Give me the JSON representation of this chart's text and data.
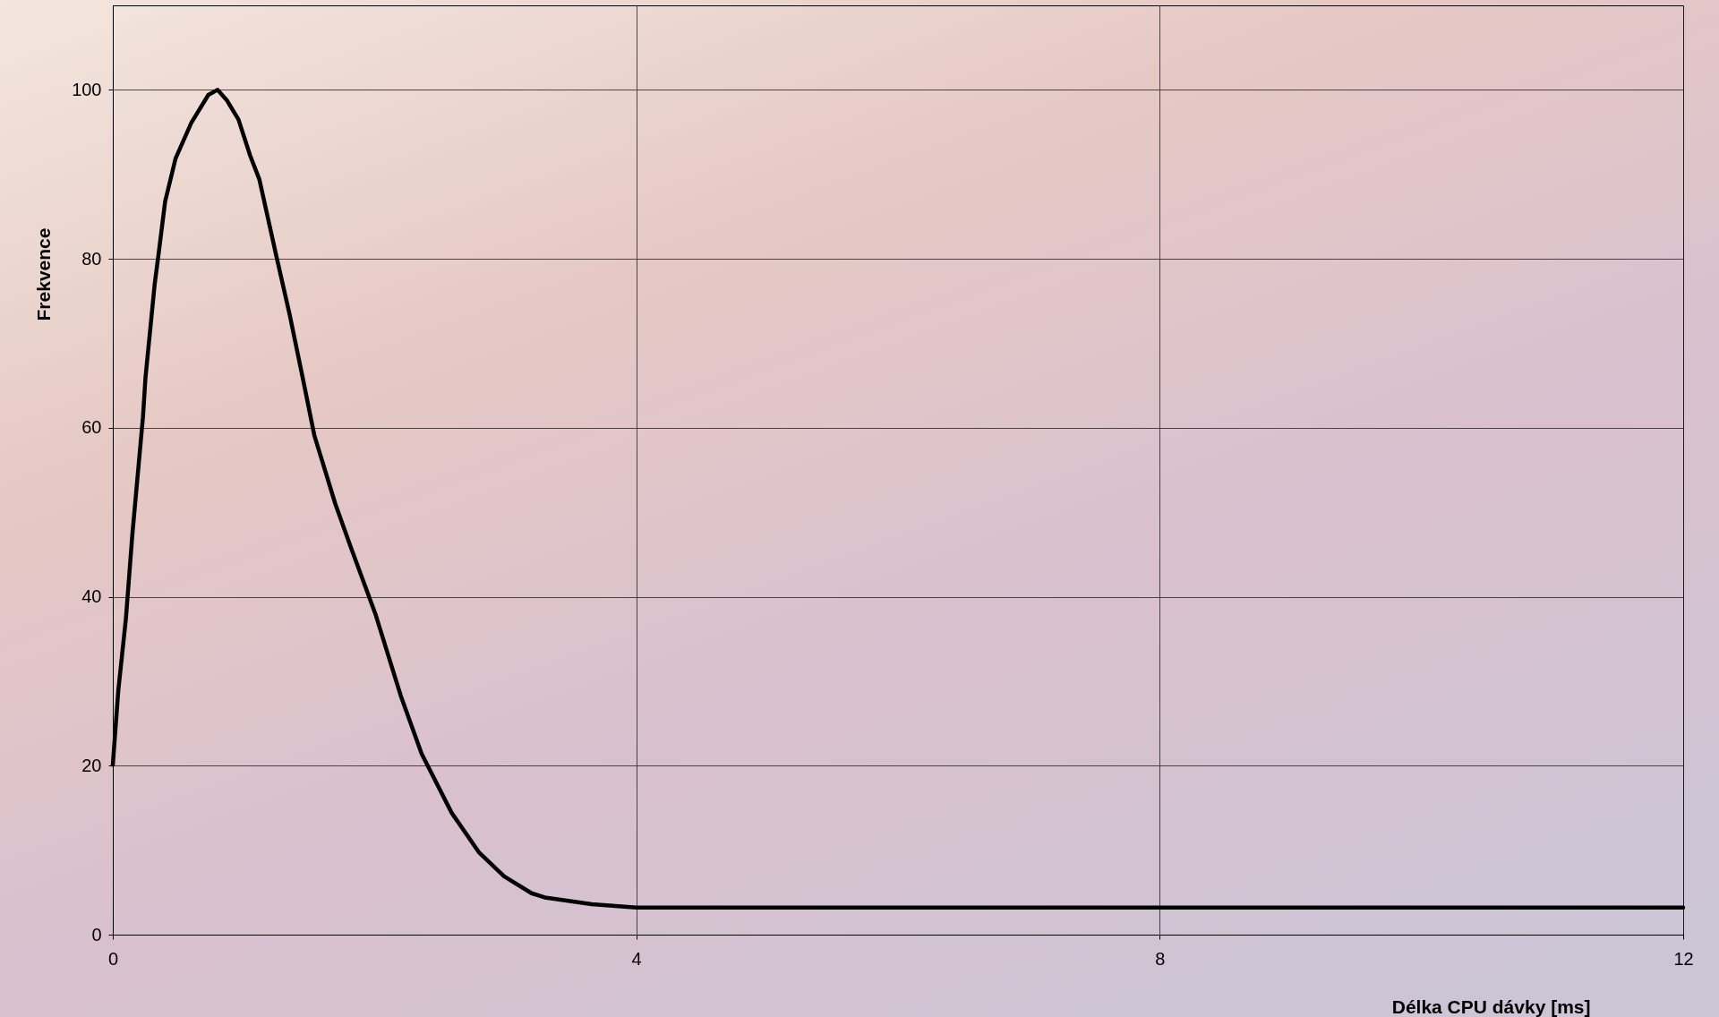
{
  "chart_data": {
    "type": "line",
    "xlabel": "Délka CPU dávky [ms]",
    "ylabel": "Frekvence",
    "x": [
      0,
      0.042,
      0.1,
      0.15,
      0.23,
      0.25,
      0.32,
      0.35,
      0.4,
      0.48,
      0.6,
      0.73,
      0.8,
      0.87,
      0.96,
      1.05,
      1.12,
      1.25,
      1.35,
      1.45,
      1.54,
      1.7,
      1.82,
      2.01,
      2.2,
      2.36,
      2.59,
      2.8,
      2.99,
      3.2,
      3.3,
      3.66,
      4,
      12
    ],
    "series": [
      {
        "color": "#000000",
        "values": [
          20.1,
          28.9,
          37.4,
          47.5,
          61.2,
          66,
          77,
          80.6,
          86.8,
          91.9,
          96.1,
          99.4,
          100,
          98.8,
          96.5,
          92.2,
          89.4,
          80.3,
          73.5,
          66,
          59.1,
          51,
          45.8,
          37.8,
          28.3,
          21.4,
          14.4,
          9.7,
          6.9,
          4.9,
          4.4,
          3.6,
          3.2,
          3.2
        ]
      }
    ],
    "xlim": [
      0,
      12
    ],
    "xticks": [
      0,
      4,
      8,
      12
    ],
    "ylim": [
      0,
      110
    ],
    "yticks": [
      0,
      20,
      40,
      60,
      80,
      100
    ],
    "grid": true,
    "line_style": "solid",
    "marker": "none"
  }
}
